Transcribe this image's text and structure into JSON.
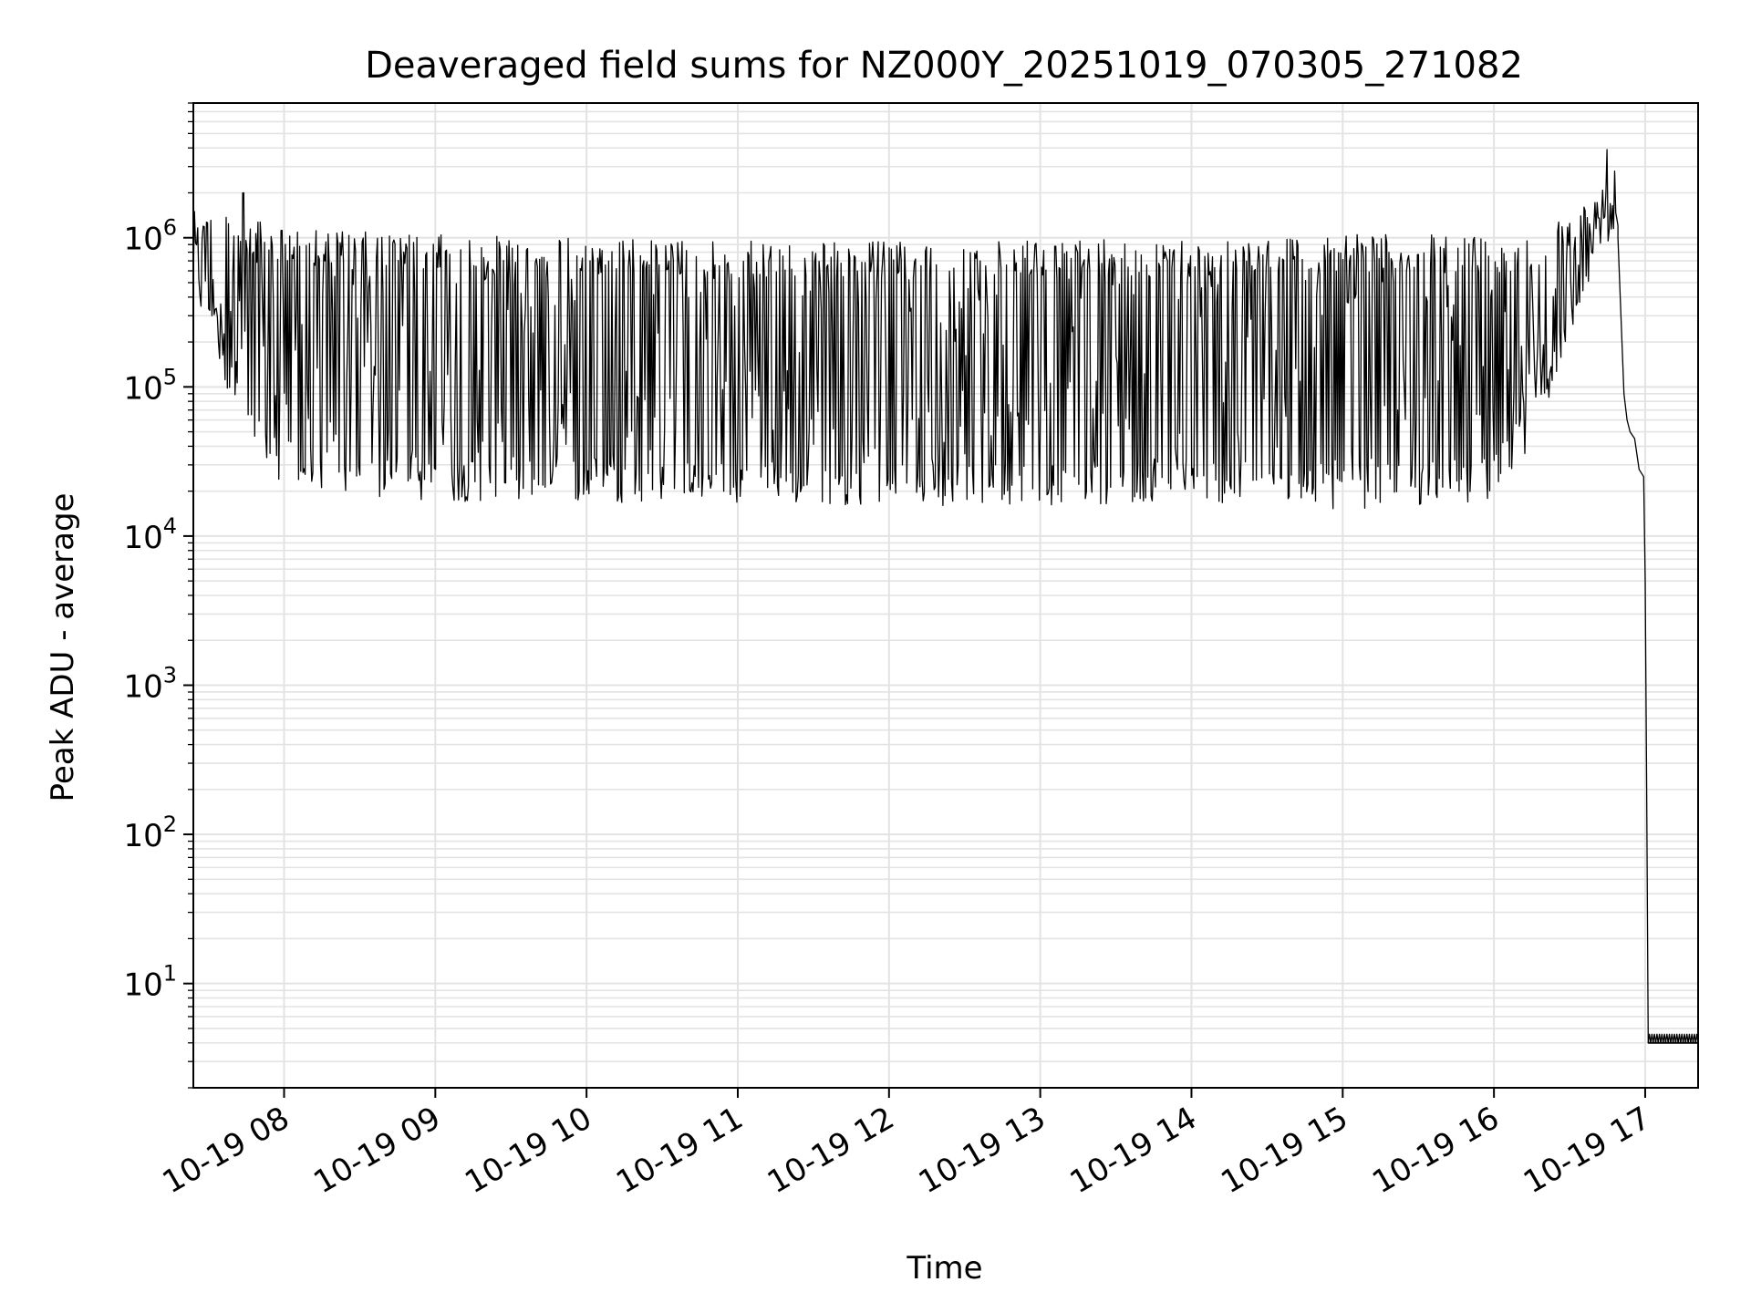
{
  "chart_data": {
    "type": "line",
    "title": "Deaveraged field sums for NZ000Y_20251019_070305_271082",
    "xlabel": "Time",
    "ylabel": "Peak ADU - average",
    "yscale": "log",
    "x_unit": "hours since 2025-10-19 00:00",
    "xlim": [
      7.4,
      17.35
    ],
    "ylim": [
      2,
      8000000
    ],
    "x_ticks": [
      {
        "value": 8,
        "label": "10-19 08"
      },
      {
        "value": 9,
        "label": "10-19 09"
      },
      {
        "value": 10,
        "label": "10-19 10"
      },
      {
        "value": 11,
        "label": "10-19 11"
      },
      {
        "value": 12,
        "label": "10-19 12"
      },
      {
        "value": 13,
        "label": "10-19 13"
      },
      {
        "value": 14,
        "label": "10-19 14"
      },
      {
        "value": 15,
        "label": "10-19 15"
      },
      {
        "value": 16,
        "label": "10-19 16"
      },
      {
        "value": 17,
        "label": "10-19 17"
      }
    ],
    "y_ticks": [
      {
        "value": 10,
        "base": "10",
        "exp": "1"
      },
      {
        "value": 100,
        "base": "10",
        "exp": "2"
      },
      {
        "value": 1000,
        "base": "10",
        "exp": "3"
      },
      {
        "value": 10000,
        "base": "10",
        "exp": "4"
      },
      {
        "value": 100000,
        "base": "10",
        "exp": "5"
      },
      {
        "value": 1000000,
        "base": "10",
        "exp": "6"
      }
    ],
    "grid": true,
    "series": [
      {
        "name": "field sums",
        "color": "#000000",
        "envelope": {
          "x": [
            7.4,
            7.5,
            7.6,
            7.7,
            7.8,
            7.9,
            8.0,
            8.5,
            9.0,
            10.0,
            11.0,
            12.0,
            13.0,
            14.0,
            15.0,
            16.0,
            16.3,
            16.5,
            16.7,
            16.82
          ],
          "high": [
            1500000,
            1600000,
            1500000,
            1400000,
            1300000,
            1250000,
            1200000,
            1100000,
            1050000,
            1000000,
            950000,
            950000,
            950000,
            1000000,
            1050000,
            1050000,
            1100000,
            1500000,
            2400000,
            1500000
          ],
          "low": [
            350000,
            250000,
            120000,
            50000,
            35000,
            28000,
            22000,
            18000,
            17000,
            17000,
            16000,
            16000,
            16000,
            17000,
            15000,
            17000,
            50000,
            200000,
            800000,
            1000000
          ]
        },
        "spikes": [
          {
            "x": 7.73,
            "y": 2000000
          },
          {
            "x": 16.75,
            "y": 3900000
          },
          {
            "x": 16.8,
            "y": 2800000
          }
        ],
        "tail": {
          "x": [
            16.82,
            16.86,
            16.88,
            16.9,
            16.93,
            16.96,
            16.99,
            17.0,
            17.01,
            17.02,
            17.35
          ],
          "y": [
            1000000,
            90000,
            60000,
            50000,
            45000,
            28000,
            25000,
            5000,
            200,
            4,
            4
          ]
        },
        "floor": {
          "x_start": 17.02,
          "x_end": 17.35,
          "low": 4,
          "high": 4.6
        }
      }
    ]
  }
}
